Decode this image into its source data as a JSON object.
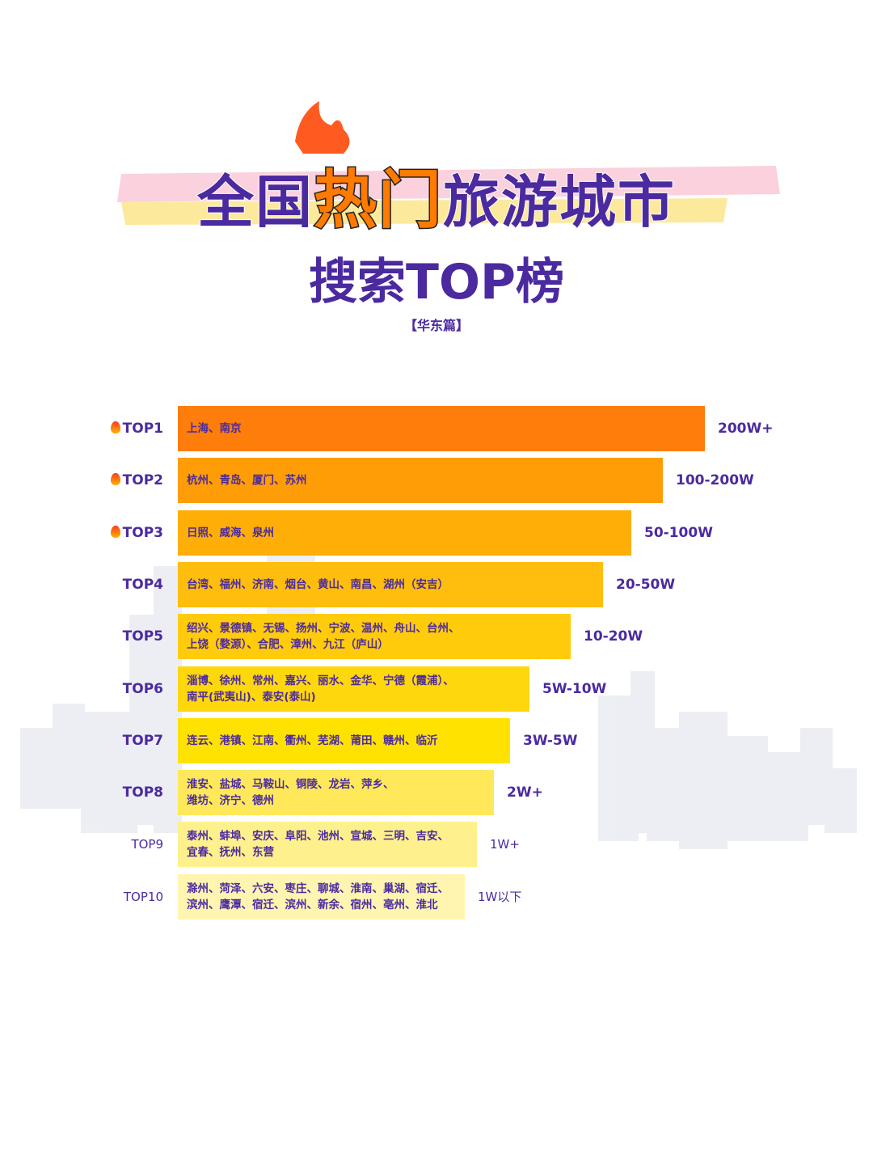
{
  "header": {
    "title_parts": [
      "全国",
      "热门",
      "旅游城市"
    ],
    "subtitle": "搜索TOP榜",
    "region": "【华东篇】"
  },
  "ranking": [
    {
      "rank": "TOP1",
      "hot": true,
      "cities": [
        "上海、南京"
      ],
      "range": "200W+"
    },
    {
      "rank": "TOP2",
      "hot": true,
      "cities": [
        "杭州、青岛、厦门、苏州"
      ],
      "range": "100-200W"
    },
    {
      "rank": "TOP3",
      "hot": true,
      "cities": [
        "日照、威海、泉州"
      ],
      "range": "50-100W"
    },
    {
      "rank": "TOP4",
      "hot": false,
      "cities": [
        "台湾、福州、济南、烟台、黄山、南昌、湖州（安吉）"
      ],
      "range": "20-50W"
    },
    {
      "rank": "TOP5",
      "hot": false,
      "cities": [
        "绍兴、景德镇、无锡、扬州、宁波、温州、舟山、台州、",
        "上饶（婺源）、合肥、漳州、九江（庐山）"
      ],
      "range": "10-20W"
    },
    {
      "rank": "TOP6",
      "hot": false,
      "cities": [
        "淄博、徐州、常州、嘉兴、丽水、金华、宁德（霞浦）、",
        "南平(武夷山)、泰安(泰山)"
      ],
      "range": "5W-10W"
    },
    {
      "rank": "TOP7",
      "hot": false,
      "cities": [
        "连云、港镇、江南、衢州、芜湖、莆田、赣州、临沂"
      ],
      "range": "3W-5W"
    },
    {
      "rank": "TOP8",
      "hot": false,
      "cities": [
        "淮安、盐城、马鞍山、铜陵、龙岩、萍乡、",
        "潍坊、济宁、德州"
      ],
      "range": "2W+"
    },
    {
      "rank": "TOP9",
      "hot": false,
      "cities": [
        "泰州、蚌埠、安庆、阜阳、池州、宣城、三明、吉安、",
        "宜春、抚州、东营"
      ],
      "range": "1W+"
    },
    {
      "rank": "TOP10",
      "hot": false,
      "cities": [
        "滁州、菏泽、六安、枣庄、聊城、淮南、巢湖、宿迁、",
        "滨州、鹰潭、宿迁、滨州、新余、宿州、亳州、淮北"
      ],
      "range": "1W以下"
    }
  ]
}
